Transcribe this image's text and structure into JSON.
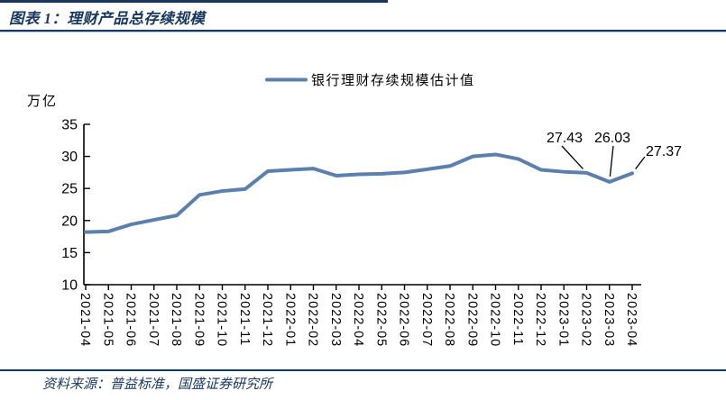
{
  "header": {
    "title": "图表 1：理财产品总存续规模"
  },
  "footer": {
    "source": "资料来源：普益标准，国盛证券研究所"
  },
  "colors": {
    "accent_navy": "#17375E",
    "series_line": "#5B80AE",
    "axis_text": "#000000"
  },
  "chart_data": {
    "type": "line",
    "title": "",
    "xlabel": "",
    "ylabel": "万亿",
    "unit_label": "万亿",
    "legend_position": "top",
    "grid": false,
    "ylim": [
      10,
      35
    ],
    "yticks": [
      10,
      15,
      20,
      25,
      30,
      35
    ],
    "line_color": "#5B80AE",
    "categories": [
      "2021-04",
      "2021-05",
      "2021-06",
      "2021-07",
      "2021-08",
      "2021-09",
      "2021-10",
      "2021-11",
      "2021-12",
      "2022-01",
      "2022-02",
      "2022-03",
      "2022-04",
      "2022-05",
      "2022-06",
      "2022-07",
      "2022-08",
      "2022-09",
      "2022-10",
      "2022-11",
      "2022-12",
      "2023-01",
      "2023-02",
      "2023-03",
      "2023-04"
    ],
    "series": [
      {
        "name": "银行理财存续规模估计值",
        "values": [
          18.2,
          18.3,
          19.4,
          20.1,
          20.8,
          24.0,
          24.6,
          24.9,
          27.7,
          27.9,
          28.1,
          27.0,
          27.2,
          27.3,
          27.5,
          28.0,
          28.5,
          30.0,
          30.3,
          29.6,
          27.9,
          27.6,
          27.43,
          26.03,
          27.37
        ]
      }
    ],
    "annotations": [
      {
        "text": "27.43",
        "category": "2023-02",
        "index": 22,
        "tx": 626,
        "ty": 158,
        "lx": 623,
        "ly": 162
      },
      {
        "text": "26.03",
        "category": "2023-03",
        "index": 23,
        "tx": 679,
        "ty": 158,
        "lx": 680,
        "ly": 162
      },
      {
        "text": "27.37",
        "category": "2023-04",
        "index": 24,
        "tx": 736,
        "ty": 173,
        "lx": 715,
        "ly": 174
      }
    ]
  }
}
